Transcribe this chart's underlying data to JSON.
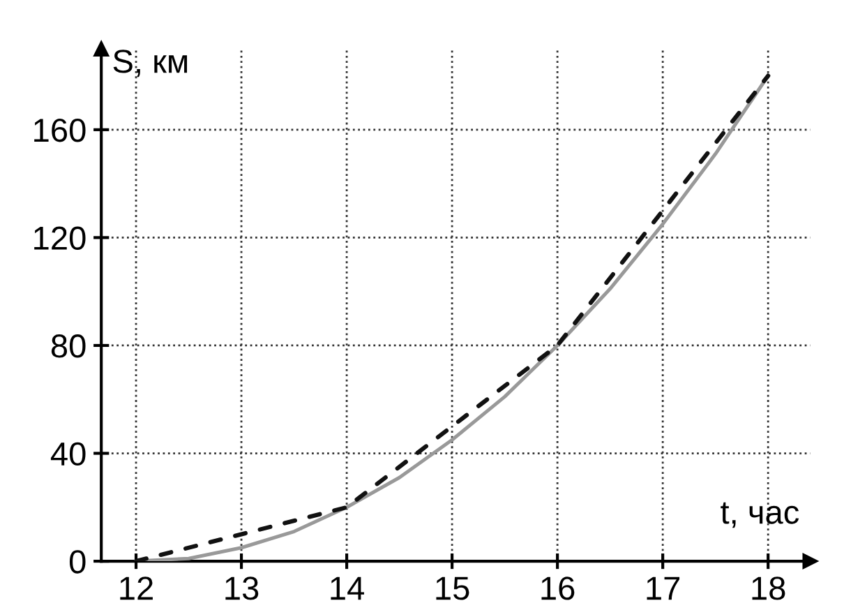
{
  "chart_data": {
    "type": "line",
    "xlabel": "t, час",
    "ylabel": "S, км",
    "xlim": [
      11.67,
      18.4
    ],
    "ylim": [
      0,
      190
    ],
    "xticks": [
      12,
      13,
      14,
      15,
      16,
      17,
      18
    ],
    "yticks": [
      0,
      40,
      80,
      120,
      160
    ],
    "grid": true,
    "series": [
      {
        "color": "#999999",
        "line_style": "solid",
        "x": [
          12,
          12.5,
          13,
          13.5,
          14,
          14.5,
          15,
          15.5,
          16,
          16.5,
          17,
          17.5,
          18
        ],
        "values": [
          0,
          1,
          5,
          11,
          20,
          31,
          45,
          61,
          80,
          101,
          125,
          151,
          180
        ]
      },
      {
        "color": "#111111",
        "line_style": "dashed",
        "x": [
          12,
          13,
          14,
          15,
          16,
          17,
          18
        ],
        "values": [
          0,
          10,
          20,
          50,
          80,
          130,
          180
        ]
      }
    ]
  }
}
